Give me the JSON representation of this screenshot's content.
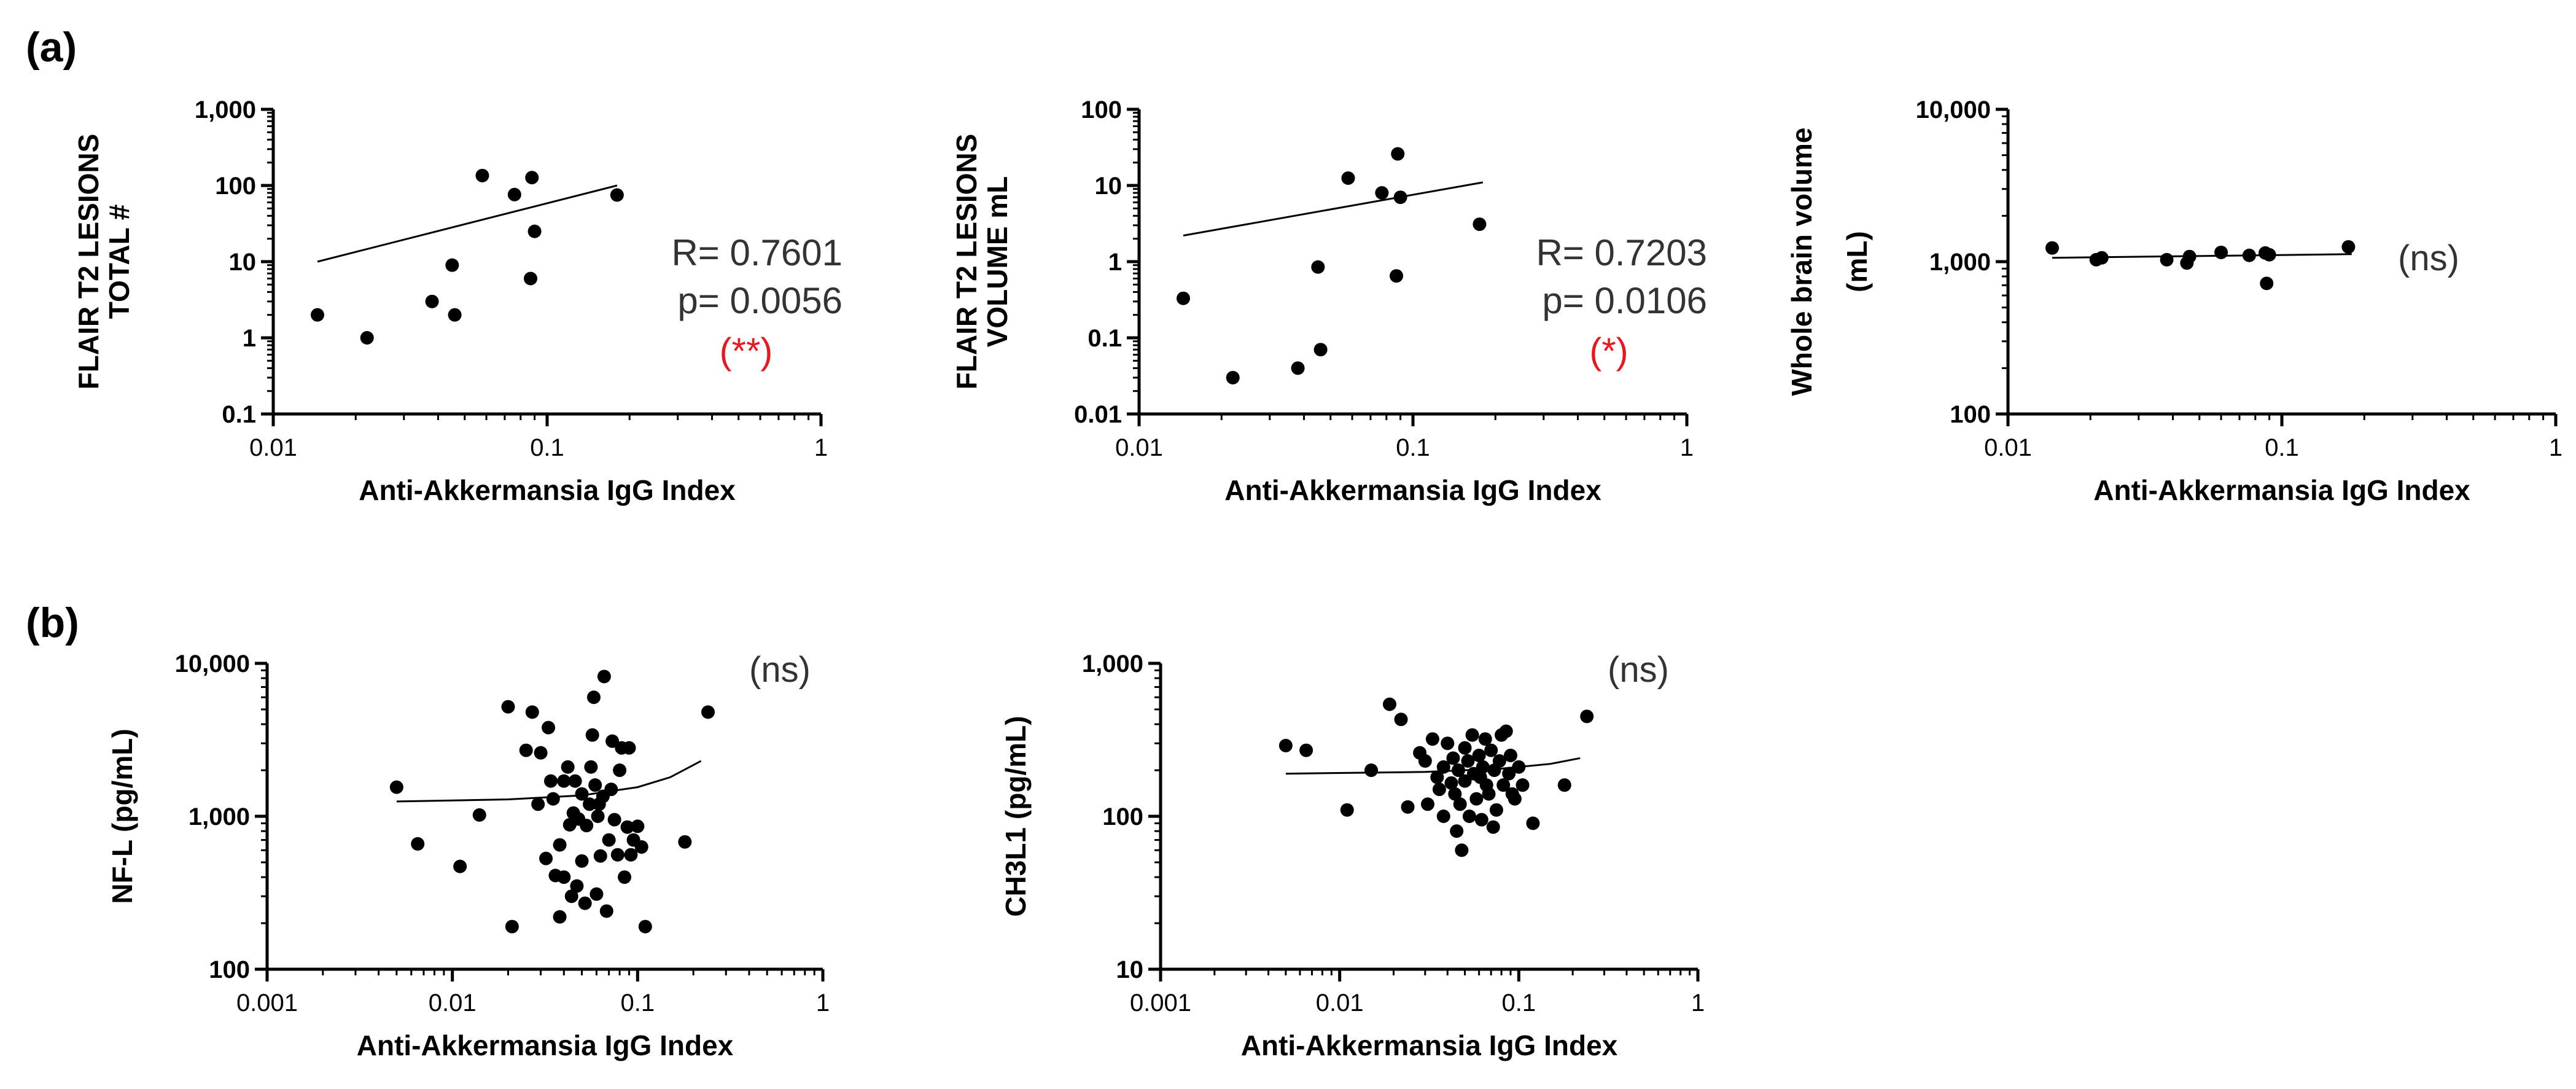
{
  "panels": {
    "a": "(a)",
    "b": "(b)"
  },
  "colors": {
    "axis": "#000000",
    "stat": "#333333",
    "sig": "#e8191e"
  },
  "chart_data": [
    {
      "id": "a1",
      "type": "scatter",
      "xlabel": "Anti-Akkermansia IgG Index",
      "ylabel": [
        "FLAIR T2 LESIONS",
        "TOTAL #"
      ],
      "xscale": "log",
      "yscale": "log",
      "xlim": [
        0.01,
        1
      ],
      "ylim": [
        0.1,
        1000
      ],
      "xticks": [
        0.01,
        0.1,
        1
      ],
      "xticklabels": [
        "0.01",
        "0.1",
        "1"
      ],
      "yticks": [
        0.1,
        1,
        10,
        100,
        1000
      ],
      "yticklabels": [
        "0.1",
        "1",
        "10",
        "100",
        "1,000"
      ],
      "points": [
        [
          0.0145,
          2
        ],
        [
          0.022,
          1
        ],
        [
          0.038,
          3
        ],
        [
          0.045,
          9
        ],
        [
          0.046,
          2
        ],
        [
          0.058,
          135
        ],
        [
          0.076,
          76
        ],
        [
          0.087,
          6
        ],
        [
          0.088,
          127
        ],
        [
          0.09,
          25
        ],
        [
          0.18,
          75
        ]
      ],
      "fit": [
        [
          0.0145,
          10
        ],
        [
          0.18,
          100
        ]
      ],
      "stats": [
        "R= 0.7601",
        "p= 0.0056"
      ],
      "sig": "(**)"
    },
    {
      "id": "a2",
      "type": "scatter",
      "xlabel": "Anti-Akkermansia IgG Index",
      "ylabel": [
        "FLAIR T2 LESIONS",
        "VOLUME mL"
      ],
      "xscale": "log",
      "yscale": "log",
      "xlim": [
        0.01,
        1
      ],
      "ylim": [
        0.01,
        100
      ],
      "xticks": [
        0.01,
        0.1,
        1
      ],
      "xticklabels": [
        "0.01",
        "0.1",
        "1"
      ],
      "yticks": [
        0.01,
        0.1,
        1,
        10,
        100
      ],
      "yticklabels": [
        "0.01",
        "0.1",
        "1",
        "10",
        "100"
      ],
      "points": [
        [
          0.0145,
          0.33
        ],
        [
          0.022,
          0.03
        ],
        [
          0.038,
          0.04
        ],
        [
          0.045,
          0.85
        ],
        [
          0.046,
          0.07
        ],
        [
          0.058,
          12.5
        ],
        [
          0.077,
          8
        ],
        [
          0.087,
          0.65
        ],
        [
          0.088,
          26
        ],
        [
          0.09,
          7
        ],
        [
          0.175,
          3.1
        ]
      ],
      "fit": [
        [
          0.0145,
          2.2
        ],
        [
          0.18,
          11
        ]
      ],
      "stats": [
        "R= 0.7203",
        "p= 0.0106"
      ],
      "sig": "(*)"
    },
    {
      "id": "a3",
      "type": "scatter",
      "xlabel": "Anti-Akkermansia IgG Index",
      "ylabel": [
        "Whole brain volume",
        "(mL)"
      ],
      "xscale": "log",
      "yscale": "log",
      "xlim": [
        0.01,
        1
      ],
      "ylim": [
        100,
        10000
      ],
      "xticks": [
        0.01,
        0.1,
        1
      ],
      "xticklabels": [
        "0.01",
        "0.1",
        "1"
      ],
      "yticks": [
        100,
        1000,
        10000
      ],
      "yticklabels": [
        "100",
        "1,000",
        "10,000"
      ],
      "points": [
        [
          0.0145,
          1230
        ],
        [
          0.021,
          1030
        ],
        [
          0.022,
          1060
        ],
        [
          0.038,
          1030
        ],
        [
          0.045,
          980
        ],
        [
          0.046,
          1080
        ],
        [
          0.06,
          1150
        ],
        [
          0.076,
          1100
        ],
        [
          0.087,
          1140
        ],
        [
          0.09,
          1110
        ],
        [
          0.088,
          720
        ],
        [
          0.175,
          1250
        ]
      ],
      "fit": [
        [
          0.0145,
          1060
        ],
        [
          0.18,
          1120
        ]
      ],
      "note": "(ns)"
    },
    {
      "id": "b1",
      "type": "scatter",
      "xlabel": "Anti-Akkermansia IgG Index",
      "ylabel": [
        "NF-L (pg/mL)"
      ],
      "xscale": "log",
      "yscale": "log",
      "xlim": [
        0.001,
        1
      ],
      "ylim": [
        100,
        10000
      ],
      "xticks": [
        0.001,
        0.01,
        0.1,
        1
      ],
      "xticklabels": [
        "0.001",
        "0.01",
        "0.1",
        "1"
      ],
      "yticks": [
        100,
        1000,
        10000
      ],
      "yticklabels": [
        "100",
        "1,000",
        "10,000"
      ],
      "points": [
        [
          0.005,
          1550
        ],
        [
          0.0065,
          660
        ],
        [
          0.011,
          470
        ],
        [
          0.014,
          1020
        ],
        [
          0.02,
          5200
        ],
        [
          0.021,
          190
        ],
        [
          0.025,
          2700
        ],
        [
          0.027,
          4800
        ],
        [
          0.029,
          1200
        ],
        [
          0.03,
          2600
        ],
        [
          0.032,
          530
        ],
        [
          0.033,
          3800
        ],
        [
          0.034,
          1700
        ],
        [
          0.035,
          1300
        ],
        [
          0.036,
          410
        ],
        [
          0.038,
          220
        ],
        [
          0.038,
          650
        ],
        [
          0.04,
          1700
        ],
        [
          0.04,
          400
        ],
        [
          0.042,
          2100
        ],
        [
          0.043,
          880
        ],
        [
          0.044,
          300
        ],
        [
          0.045,
          1050
        ],
        [
          0.046,
          1700
        ],
        [
          0.047,
          350
        ],
        [
          0.048,
          960
        ],
        [
          0.05,
          1400
        ],
        [
          0.05,
          510
        ],
        [
          0.052,
          270
        ],
        [
          0.053,
          870
        ],
        [
          0.055,
          1200
        ],
        [
          0.056,
          2100
        ],
        [
          0.057,
          3400
        ],
        [
          0.058,
          6000
        ],
        [
          0.059,
          1600
        ],
        [
          0.06,
          310
        ],
        [
          0.061,
          1000
        ],
        [
          0.062,
          1200
        ],
        [
          0.063,
          550
        ],
        [
          0.065,
          1350
        ],
        [
          0.066,
          8200
        ],
        [
          0.068,
          240
        ],
        [
          0.07,
          700
        ],
        [
          0.072,
          1500
        ],
        [
          0.073,
          3100
        ],
        [
          0.075,
          950
        ],
        [
          0.078,
          560
        ],
        [
          0.08,
          2000
        ],
        [
          0.082,
          2800
        ],
        [
          0.085,
          400
        ],
        [
          0.088,
          850
        ],
        [
          0.09,
          2800
        ],
        [
          0.092,
          560
        ],
        [
          0.095,
          700
        ],
        [
          0.1,
          860
        ],
        [
          0.105,
          630
        ],
        [
          0.11,
          190
        ],
        [
          0.18,
          680
        ],
        [
          0.24,
          4800
        ]
      ],
      "fit": [
        [
          0.005,
          1250
        ],
        [
          0.02,
          1290
        ],
        [
          0.05,
          1370
        ],
        [
          0.1,
          1550
        ],
        [
          0.15,
          1800
        ],
        [
          0.22,
          2300
        ]
      ],
      "note": "(ns)"
    },
    {
      "id": "b2",
      "type": "scatter",
      "xlabel": "Anti-Akkermansia IgG Index",
      "ylabel": [
        "CH3L1 (pg/mL)"
      ],
      "xscale": "log",
      "yscale": "log",
      "xlim": [
        0.001,
        1
      ],
      "ylim": [
        10,
        1000
      ],
      "xticks": [
        0.001,
        0.01,
        0.1,
        1
      ],
      "xticklabels": [
        "0.001",
        "0.01",
        "0.1",
        "1"
      ],
      "yticks": [
        10,
        100,
        1000
      ],
      "yticklabels": [
        "10",
        "100",
        "1,000"
      ],
      "points": [
        [
          0.005,
          290
        ],
        [
          0.0065,
          270
        ],
        [
          0.011,
          110
        ],
        [
          0.015,
          200
        ],
        [
          0.019,
          540
        ],
        [
          0.022,
          430
        ],
        [
          0.024,
          115
        ],
        [
          0.028,
          260
        ],
        [
          0.03,
          230
        ],
        [
          0.031,
          120
        ],
        [
          0.033,
          320
        ],
        [
          0.035,
          180
        ],
        [
          0.036,
          150
        ],
        [
          0.038,
          210
        ],
        [
          0.038,
          100
        ],
        [
          0.04,
          300
        ],
        [
          0.042,
          165
        ],
        [
          0.043,
          240
        ],
        [
          0.044,
          140
        ],
        [
          0.045,
          80
        ],
        [
          0.046,
          200
        ],
        [
          0.047,
          120
        ],
        [
          0.048,
          60
        ],
        [
          0.05,
          280
        ],
        [
          0.05,
          170
        ],
        [
          0.052,
          230
        ],
        [
          0.053,
          100
        ],
        [
          0.055,
          340
        ],
        [
          0.056,
          190
        ],
        [
          0.058,
          130
        ],
        [
          0.06,
          250
        ],
        [
          0.061,
          180
        ],
        [
          0.062,
          95
        ],
        [
          0.063,
          210
        ],
        [
          0.065,
          320
        ],
        [
          0.066,
          160
        ],
        [
          0.068,
          140
        ],
        [
          0.07,
          270
        ],
        [
          0.072,
          85
        ],
        [
          0.073,
          200
        ],
        [
          0.075,
          110
        ],
        [
          0.078,
          230
        ],
        [
          0.08,
          340
        ],
        [
          0.082,
          160
        ],
        [
          0.085,
          360
        ],
        [
          0.088,
          190
        ],
        [
          0.09,
          250
        ],
        [
          0.092,
          140
        ],
        [
          0.095,
          130
        ],
        [
          0.1,
          210
        ],
        [
          0.105,
          160
        ],
        [
          0.12,
          90
        ],
        [
          0.18,
          160
        ],
        [
          0.24,
          450
        ]
      ],
      "fit": [
        [
          0.005,
          190
        ],
        [
          0.03,
          195
        ],
        [
          0.08,
          205
        ],
        [
          0.15,
          220
        ],
        [
          0.22,
          240
        ]
      ],
      "note": "(ns)"
    }
  ]
}
